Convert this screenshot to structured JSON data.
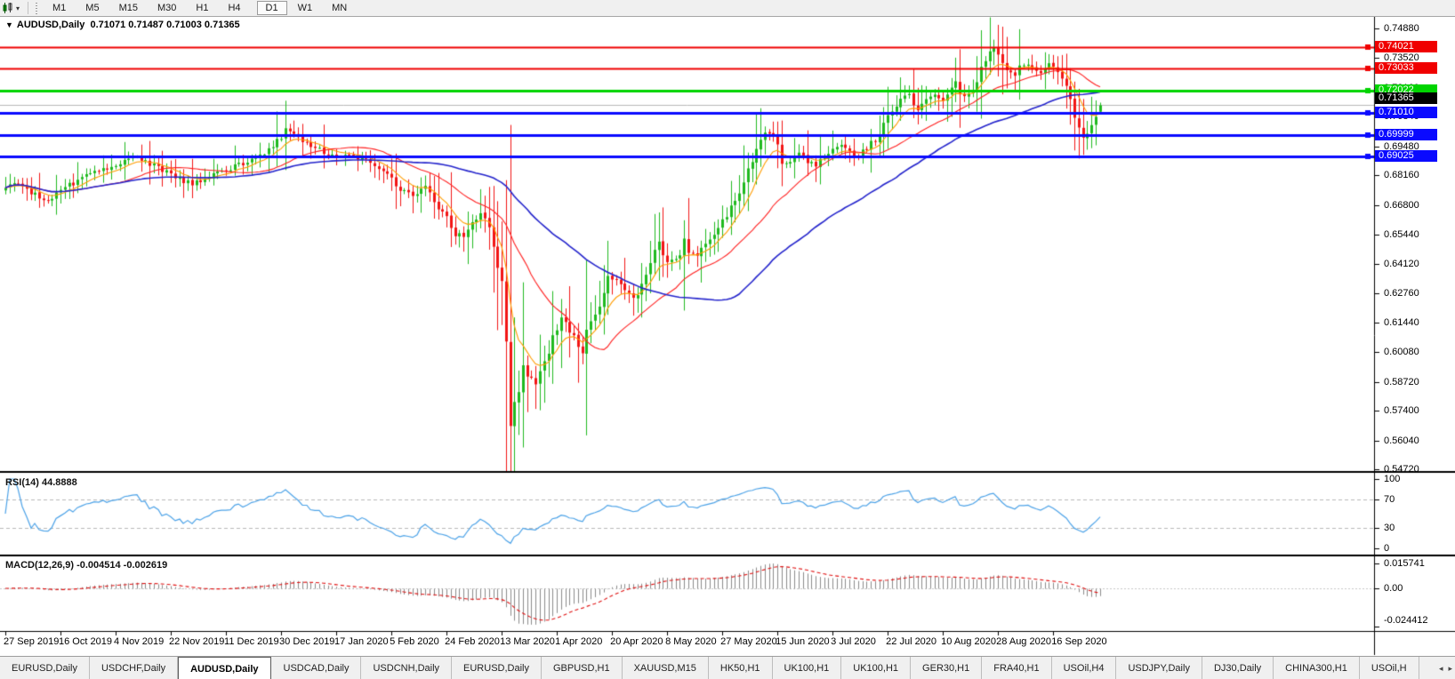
{
  "toolbar": {
    "timeframes": [
      "M1",
      "M5",
      "M15",
      "M30",
      "H1",
      "H4",
      "D1",
      "W1",
      "MN"
    ],
    "active_timeframe": "D1",
    "dropdown_caret": "▾"
  },
  "chart": {
    "title": "AUDUSD,Daily",
    "ohlc": "0.71071 0.71487 0.71003 0.71365",
    "title_caret": "▼",
    "current_price_label": "0.71365",
    "current_price_box_color": "#000000"
  },
  "price_axis": {
    "ticks": [
      "0.74880",
      "0.73520",
      "0.72160",
      "0.70840",
      "0.69480",
      "0.68160",
      "0.66800",
      "0.65440",
      "0.64120",
      "0.62760",
      "0.61440",
      "0.60080",
      "0.58720",
      "0.57400",
      "0.56040",
      "0.54720"
    ]
  },
  "rsi": {
    "label": "RSI(14) 44.8888",
    "period": 14,
    "value": 44.8888,
    "axis_ticks": [
      "100",
      "70",
      "30",
      "0"
    ],
    "upper_level": 70,
    "lower_level": 30,
    "line_color": "#4da3e8"
  },
  "macd": {
    "label": "MACD(12,26,9) -0.004514 -0.002619",
    "macd_value": -0.004514,
    "signal_value": -0.002619,
    "axis_ticks": [
      "0.015741",
      "0.00",
      "-0.024412"
    ],
    "axis_max": 0.015741,
    "axis_min": -0.024412,
    "histogram_color": "#8c8c8c",
    "signal_color": "#e01010"
  },
  "tabs": {
    "items": [
      {
        "label": "EURUSD,Daily",
        "active": false
      },
      {
        "label": "USDCHF,Daily",
        "active": false
      },
      {
        "label": "AUDUSD,Daily",
        "active": true
      },
      {
        "label": "USDCAD,Daily",
        "active": false
      },
      {
        "label": "USDCNH,Daily",
        "active": false
      },
      {
        "label": "EURUSD,Daily",
        "active": false
      },
      {
        "label": "GBPUSD,H1",
        "active": false
      },
      {
        "label": "XAUUSD,M15",
        "active": false
      },
      {
        "label": "HK50,H1",
        "active": false
      },
      {
        "label": "UK100,H1",
        "active": false
      },
      {
        "label": "UK100,H1",
        "active": false
      },
      {
        "label": "GER30,H1",
        "active": false
      },
      {
        "label": "FRA40,H1",
        "active": false
      },
      {
        "label": "USOil,H4",
        "active": false
      },
      {
        "label": "USDJPY,Daily",
        "active": false
      },
      {
        "label": "DJ30,Daily",
        "active": false
      },
      {
        "label": "CHINA300,H1",
        "active": false
      },
      {
        "label": "USOil,H",
        "active": false
      }
    ],
    "scroll_left_icon": "◂",
    "scroll_right_icon": "▸"
  },
  "chart_data": {
    "type": "candlestick",
    "symbol": "AUDUSD",
    "timeframe": "Daily",
    "title": "AUDUSD,Daily 0.71071 0.71487 0.71003 0.71365",
    "y_min": 0.5472,
    "y_max": 0.7488,
    "x_labels": [
      "27 Sep 2019",
      "16 Oct 2019",
      "4 Nov 2019",
      "22 Nov 2019",
      "11 Dec 2019",
      "30 Dec 2019",
      "17 Jan 2020",
      "5 Feb 2020",
      "24 Feb 2020",
      "13 Mar 2020",
      "1 Apr 2020",
      "20 Apr 2020",
      "8 May 2020",
      "27 May 2020",
      "15 Jun 2020",
      "3 Jul 2020",
      "22 Jul 2020",
      "10 Aug 2020",
      "28 Aug 2020",
      "16 Sep 2020"
    ],
    "bars_per_label": 13,
    "bar_count": 259,
    "colors": {
      "up": "#1fba1f",
      "down": "#f21515",
      "current_price_line": "#b8b8b8"
    },
    "close_anchors": [
      [
        0,
        0.6765
      ],
      [
        3,
        0.6775
      ],
      [
        5,
        0.6745
      ],
      [
        8,
        0.672
      ],
      [
        10,
        0.6705
      ],
      [
        12,
        0.673
      ],
      [
        14,
        0.676
      ],
      [
        17,
        0.679
      ],
      [
        20,
        0.683
      ],
      [
        23,
        0.6845
      ],
      [
        26,
        0.687
      ],
      [
        29,
        0.6885
      ],
      [
        31,
        0.6895
      ],
      [
        34,
        0.687
      ],
      [
        36,
        0.685
      ],
      [
        39,
        0.682
      ],
      [
        41,
        0.68
      ],
      [
        44,
        0.6775
      ],
      [
        47,
        0.68
      ],
      [
        50,
        0.683
      ],
      [
        53,
        0.685
      ],
      [
        57,
        0.688
      ],
      [
        60,
        0.6905
      ],
      [
        63,
        0.695
      ],
      [
        65,
        0.699
      ],
      [
        66,
        0.7025
      ],
      [
        68,
        0.701
      ],
      [
        70,
        0.698
      ],
      [
        73,
        0.694
      ],
      [
        75,
        0.692
      ],
      [
        78,
        0.6905
      ],
      [
        82,
        0.691
      ],
      [
        85,
        0.688
      ],
      [
        88,
        0.685
      ],
      [
        91,
        0.68
      ],
      [
        94,
        0.674
      ],
      [
        97,
        0.672
      ],
      [
        99,
        0.676
      ],
      [
        101,
        0.67
      ],
      [
        103,
        0.664
      ],
      [
        105,
        0.659
      ],
      [
        106,
        0.655
      ],
      [
        108,
        0.654
      ],
      [
        110,
        0.661
      ],
      [
        112,
        0.664
      ],
      [
        114,
        0.659
      ],
      [
        115,
        0.65
      ],
      [
        116,
        0.642
      ],
      [
        117,
        0.628
      ],
      [
        118,
        0.6
      ],
      [
        119,
        0.57
      ],
      [
        120,
        0.579
      ],
      [
        121,
        0.585
      ],
      [
        122,
        0.596
      ],
      [
        123,
        0.59
      ],
      [
        125,
        0.587
      ],
      [
        127,
        0.595
      ],
      [
        129,
        0.608
      ],
      [
        131,
        0.617
      ],
      [
        132,
        0.614
      ],
      [
        134,
        0.607
      ],
      [
        136,
        0.599
      ],
      [
        138,
        0.616
      ],
      [
        140,
        0.623
      ],
      [
        142,
        0.635
      ],
      [
        144,
        0.633
      ],
      [
        146,
        0.628
      ],
      [
        148,
        0.626
      ],
      [
        150,
        0.63
      ],
      [
        152,
        0.644
      ],
      [
        154,
        0.651
      ],
      [
        156,
        0.643
      ],
      [
        158,
        0.642
      ],
      [
        160,
        0.653
      ],
      [
        161,
        0.647
      ],
      [
        163,
        0.645
      ],
      [
        166,
        0.653
      ],
      [
        170,
        0.664
      ],
      [
        173,
        0.675
      ],
      [
        175,
        0.685
      ],
      [
        177,
        0.695
      ],
      [
        179,
        0.7
      ],
      [
        181,
        0.702
      ],
      [
        183,
        0.685
      ],
      [
        185,
        0.687
      ],
      [
        187,
        0.692
      ],
      [
        189,
        0.688
      ],
      [
        191,
        0.686
      ],
      [
        193,
        0.69
      ],
      [
        195,
        0.694
      ],
      [
        197,
        0.695
      ],
      [
        199,
        0.692
      ],
      [
        201,
        0.69
      ],
      [
        203,
        0.694
      ],
      [
        205,
        0.698
      ],
      [
        207,
        0.704
      ],
      [
        209,
        0.712
      ],
      [
        211,
        0.716
      ],
      [
        213,
        0.719
      ],
      [
        215,
        0.712
      ],
      [
        217,
        0.716
      ],
      [
        219,
        0.718
      ],
      [
        221,
        0.715
      ],
      [
        223,
        0.72
      ],
      [
        224,
        0.724
      ],
      [
        225,
        0.72
      ],
      [
        226,
        0.718
      ],
      [
        228,
        0.722
      ],
      [
        230,
        0.73
      ],
      [
        232,
        0.737
      ],
      [
        233,
        0.74
      ],
      [
        234,
        0.736
      ],
      [
        236,
        0.731
      ],
      [
        238,
        0.728
      ],
      [
        240,
        0.733
      ],
      [
        242,
        0.731
      ],
      [
        244,
        0.729
      ],
      [
        246,
        0.732
      ],
      [
        248,
        0.729
      ],
      [
        250,
        0.723
      ],
      [
        251,
        0.718
      ],
      [
        252,
        0.71
      ],
      [
        253,
        0.703
      ],
      [
        254,
        0.699
      ],
      [
        255,
        0.701
      ],
      [
        256,
        0.706
      ],
      [
        257,
        0.71
      ],
      [
        258,
        0.71365
      ]
    ],
    "special_wicks": {
      "66": {
        "high": 0.7042
      },
      "119": {
        "low": 0.5478
      },
      "181": {
        "high": 0.7062
      },
      "213": {
        "high": 0.7227
      },
      "233": {
        "high": 0.7414
      },
      "253": {
        "low": 0.6962
      }
    },
    "last_bar": {
      "open": 0.71071,
      "high": 0.71487,
      "low": 0.71003,
      "close": 0.71365
    },
    "current_price": 0.71365,
    "hlines": [
      {
        "price": 0.74021,
        "label": "0.74021",
        "color": "#f00000",
        "width": 2
      },
      {
        "price": 0.73033,
        "label": "0.73033",
        "color": "#f00000",
        "width": 2
      },
      {
        "price": 0.72022,
        "label": "0.72022",
        "color": "#00d400",
        "width": 3
      },
      {
        "price": 0.7101,
        "label": "0.71010",
        "color": "#0a0aff",
        "width": 3
      },
      {
        "price": 0.69999,
        "label": "0.69999",
        "color": "#0a0aff",
        "width": 3
      },
      {
        "price": 0.69025,
        "label": "0.69025",
        "color": "#0a0aff",
        "width": 3
      }
    ],
    "moving_averages": [
      {
        "kind": "ema",
        "period": 8,
        "color": "#ff9d00"
      },
      {
        "kind": "sma",
        "period": 24,
        "color": "#ff2020"
      },
      {
        "kind": "sma",
        "period": 55,
        "color": "#2424cc"
      }
    ]
  }
}
